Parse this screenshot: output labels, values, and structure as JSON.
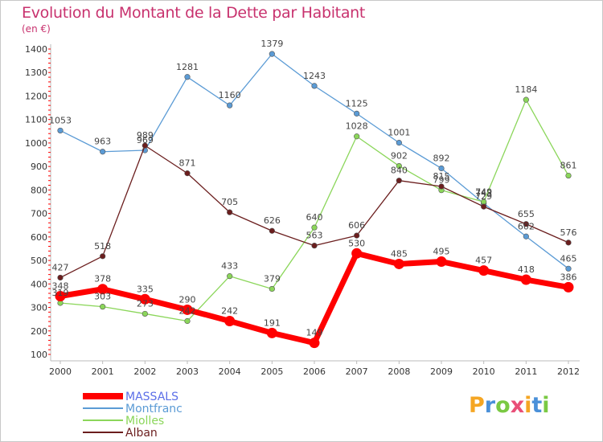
{
  "chart_data": {
    "type": "line",
    "title": "Evolution du Montant de la Dette par Habitant",
    "subtitle": "(en €)",
    "x": [
      "2000",
      "2001",
      "2002",
      "2003",
      "2004",
      "2005",
      "2006",
      "2007",
      "2008",
      "2009",
      "2010",
      "2011",
      "2012"
    ],
    "ylim": [
      100,
      1400
    ],
    "yticks": [
      100,
      200,
      300,
      400,
      500,
      600,
      700,
      800,
      900,
      1000,
      1100,
      1200,
      1300,
      1400
    ],
    "grid": false,
    "legend_position": "bottom-left",
    "series": [
      {
        "name": "MASSALS",
        "color": "#ff0000",
        "values": [
          348,
          378,
          335,
          290,
          242,
          191,
          149,
          530,
          485,
          495,
          457,
          418,
          386
        ]
      },
      {
        "name": "Montfranc",
        "color": "#5b9bd5",
        "values": [
          1053,
          963,
          969,
          1281,
          1160,
          1379,
          1243,
          1125,
          1001,
          892,
          743,
          602,
          465
        ]
      },
      {
        "name": "Miolles",
        "color": "#8bd65a",
        "values": [
          319,
          303,
          273,
          242,
          433,
          379,
          640,
          1028,
          902,
          799,
          749,
          1184,
          861
        ]
      },
      {
        "name": "Alban",
        "color": "#6b1e1e",
        "values": [
          427,
          518,
          989,
          871,
          705,
          626,
          563,
          606,
          840,
          815,
          729,
          655,
          576
        ]
      }
    ]
  },
  "logo": {
    "letters": [
      "P",
      "r",
      "o",
      "x",
      "i",
      "t",
      "i"
    ],
    "colors": [
      "#f5a623",
      "#4a90d9",
      "#7ac943",
      "#e94e77",
      "#f5a623",
      "#4a90d9",
      "#7ac943"
    ]
  }
}
